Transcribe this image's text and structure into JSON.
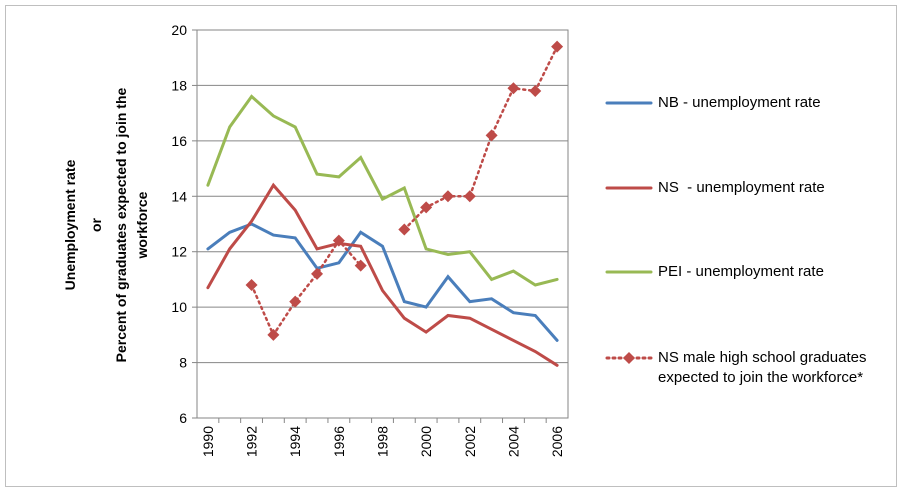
{
  "chart_data": {
    "type": "line",
    "ylabel": [
      "Unemployment rate",
      "or",
      "Percent of graduates expected to join the",
      "workforce"
    ],
    "x": [
      1990,
      1991,
      1992,
      1993,
      1994,
      1995,
      1996,
      1997,
      1998,
      1999,
      2000,
      2001,
      2002,
      2003,
      2004,
      2005,
      2006
    ],
    "xlim": [
      1989.5,
      2006.5
    ],
    "xticks": [
      1990,
      1992,
      1994,
      1996,
      1998,
      2000,
      2002,
      2004,
      2006
    ],
    "ylim": [
      6,
      20
    ],
    "yticks": [
      6,
      8,
      10,
      12,
      14,
      16,
      18,
      20
    ],
    "grid": true,
    "legend": "right",
    "series": [
      {
        "name": "NB - unemployment rate",
        "color": "#4a7ebb",
        "style": "solid",
        "values": [
          12.1,
          12.7,
          13.0,
          12.6,
          12.5,
          11.4,
          11.6,
          12.7,
          12.2,
          10.2,
          10.0,
          11.1,
          10.2,
          10.3,
          9.8,
          9.7,
          8.8
        ]
      },
      {
        "name": "NS  - unemployment rate",
        "color": "#be4b48",
        "style": "solid",
        "values": [
          10.7,
          12.1,
          13.1,
          14.4,
          13.5,
          12.1,
          12.3,
          12.2,
          10.6,
          9.6,
          9.1,
          9.7,
          9.6,
          9.2,
          8.8,
          8.4,
          7.9
        ]
      },
      {
        "name": "PEI - unemployment rate",
        "color": "#98b954",
        "style": "solid",
        "values": [
          14.4,
          16.5,
          17.6,
          16.9,
          16.5,
          14.8,
          14.7,
          15.4,
          13.9,
          14.3,
          12.1,
          11.9,
          12.0,
          11.0,
          11.3,
          10.8,
          11.0
        ]
      },
      {
        "name": "NS male high school graduates expected to join the workforce*",
        "color": "#be4b48",
        "style": "dotted",
        "marker": "diamond",
        "values": [
          null,
          null,
          10.8,
          9.0,
          10.2,
          11.2,
          12.4,
          11.5,
          null,
          12.8,
          13.6,
          14.0,
          14.0,
          16.2,
          17.9,
          17.8,
          19.4
        ]
      }
    ]
  }
}
